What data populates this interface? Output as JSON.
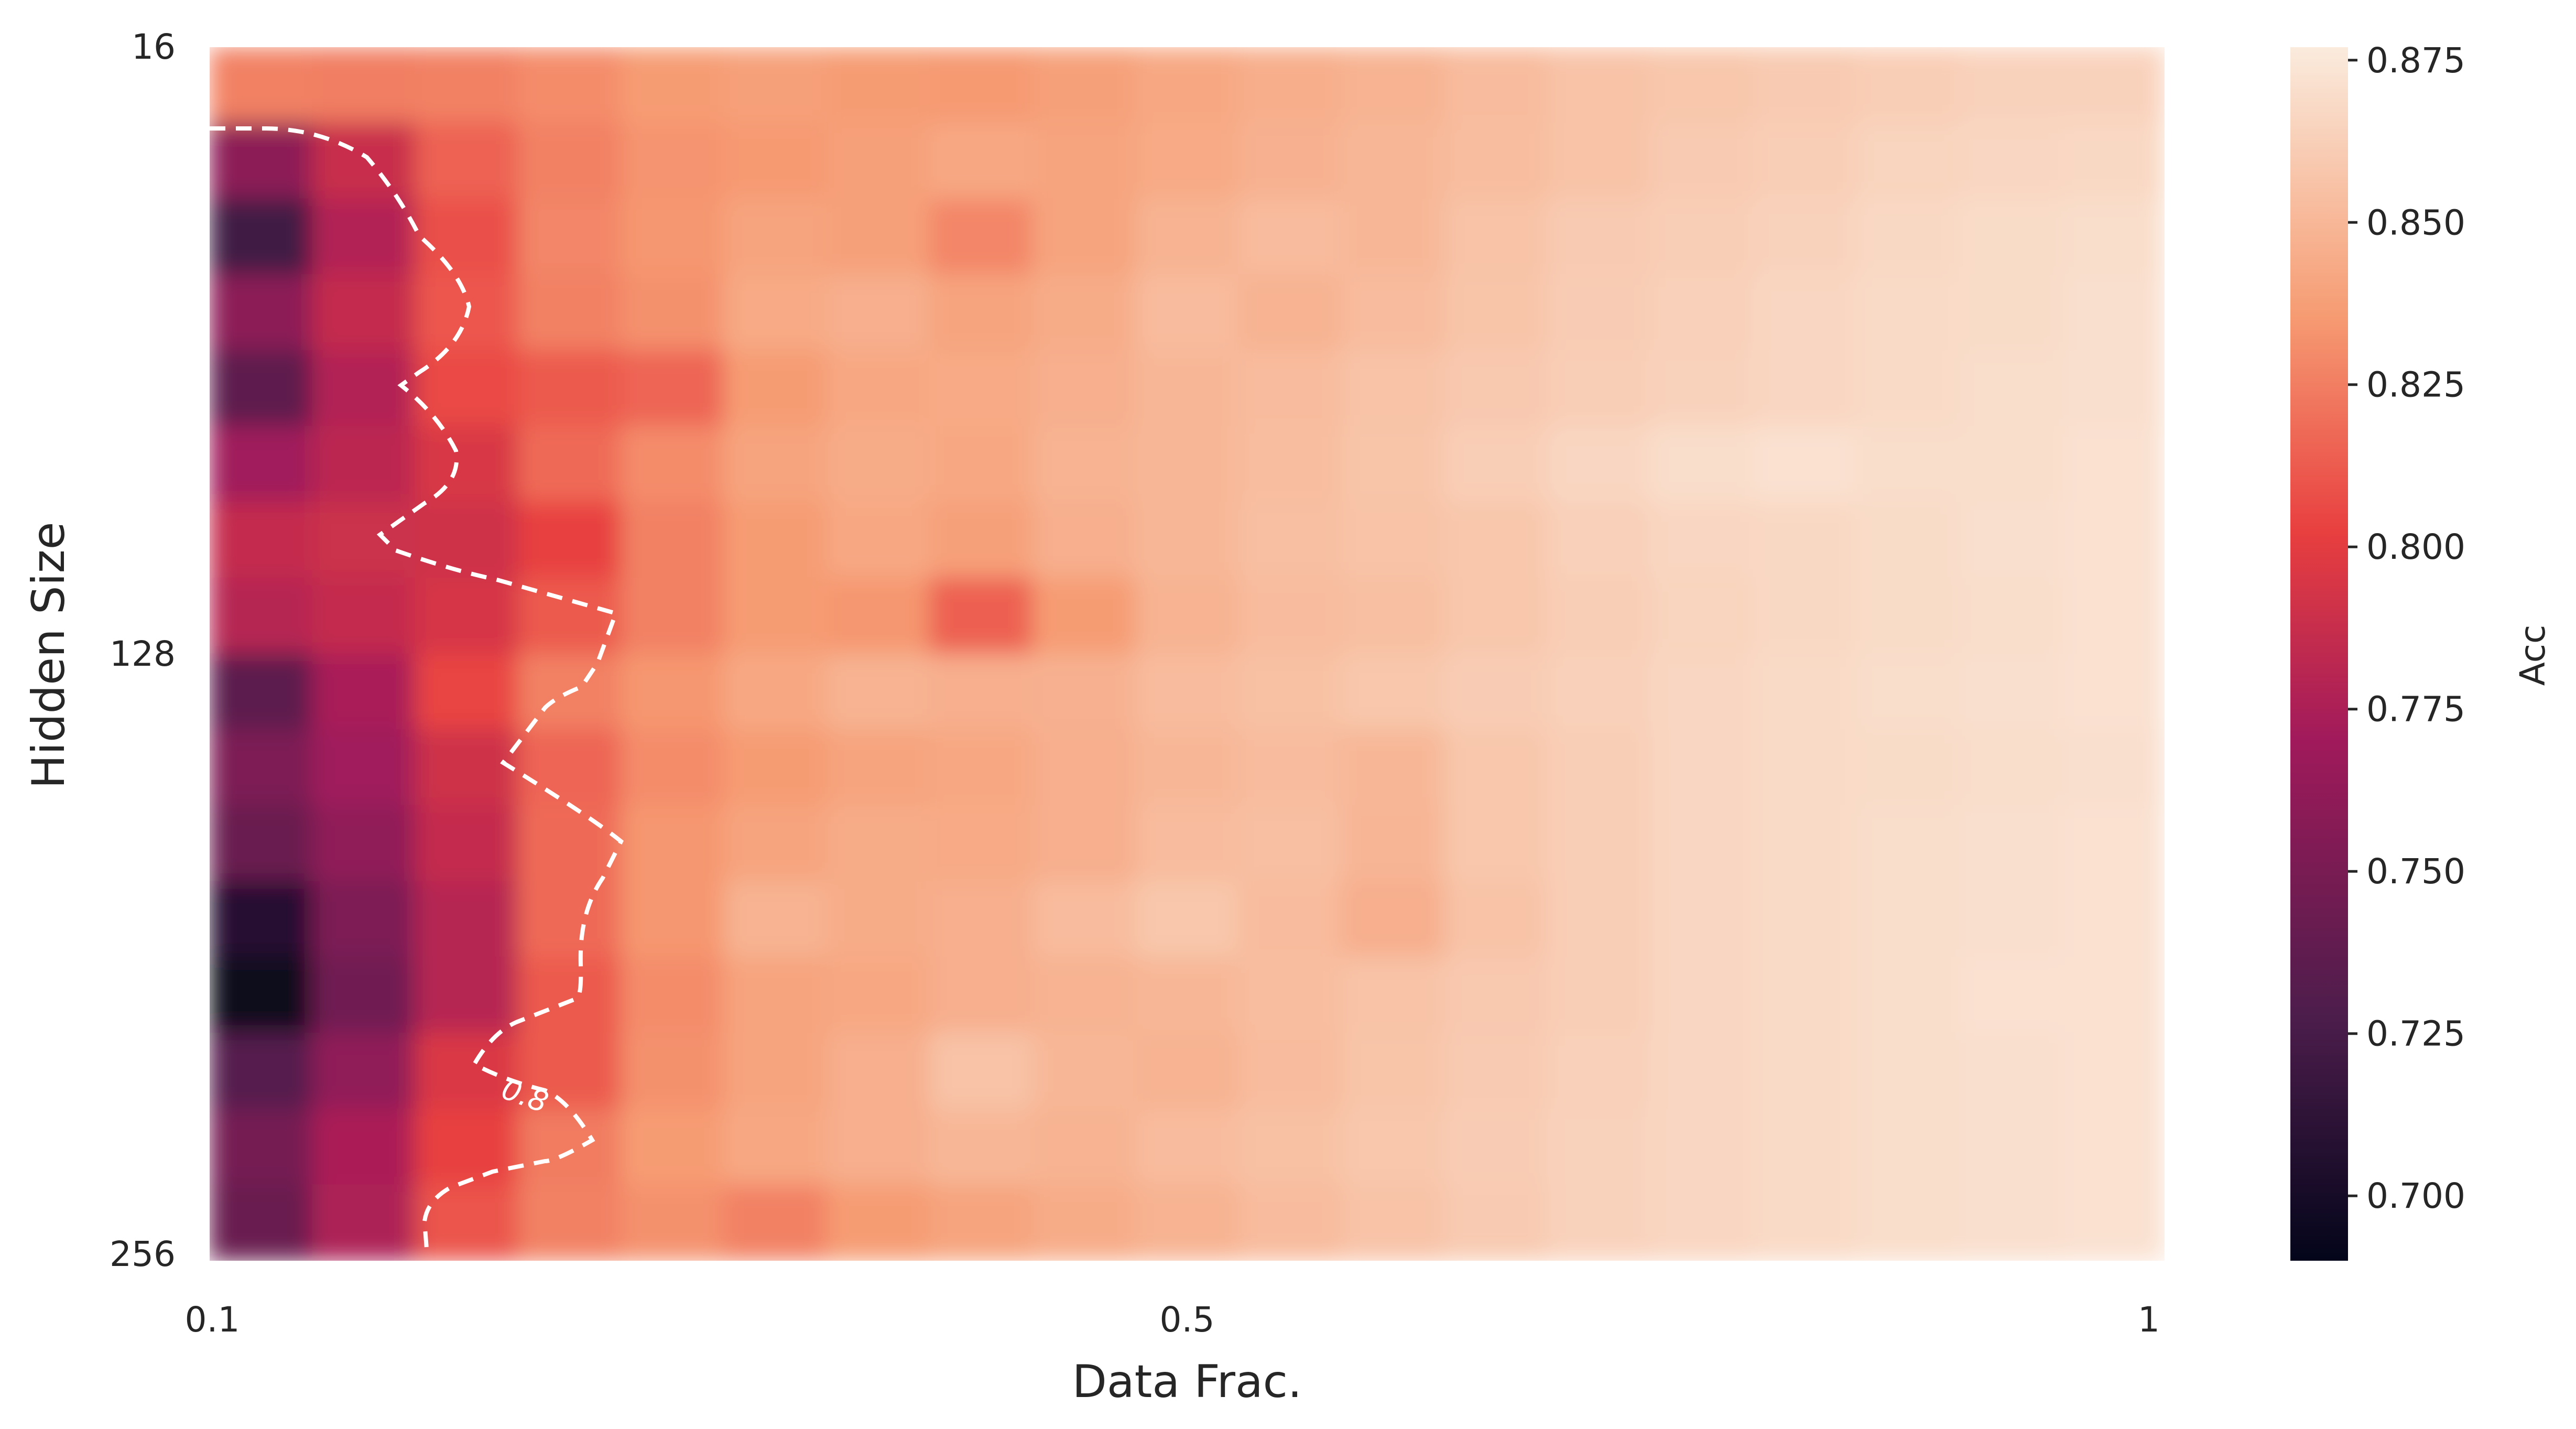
{
  "chart_data": {
    "type": "heatmap",
    "xlabel": "Data Frac.",
    "ylabel": "Hidden Size",
    "x_ticks": [
      "0.1",
      "0.5",
      "1"
    ],
    "y_ticks": [
      "16",
      "128",
      "256"
    ],
    "x_range": [
      0.1,
      1.0
    ],
    "y_range": [
      16,
      256
    ],
    "colorbar": {
      "label": "Acc",
      "range": [
        0.69,
        0.877
      ],
      "ticks": [
        "0.700",
        "0.725",
        "0.750",
        "0.775",
        "0.800",
        "0.825",
        "0.850",
        "0.875"
      ],
      "colormap": "rocket",
      "stops": [
        "#03051a",
        "#4c1d4b",
        "#a11a5b",
        "#e83f3f",
        "#f69c73",
        "#faebdd"
      ]
    },
    "contour": {
      "level": 0.8,
      "label": "0.8",
      "style": "dashed",
      "color": "#ffffff"
    },
    "rows_hidden_size": [
      16,
      32,
      48,
      64,
      80,
      96,
      112,
      128,
      144,
      160,
      176,
      192,
      208,
      224,
      240,
      256
    ],
    "cols_data_frac": [
      0.1,
      0.15,
      0.2,
      0.25,
      0.3,
      0.35,
      0.4,
      0.45,
      0.5,
      0.55,
      0.6,
      0.65,
      0.7,
      0.75,
      0.8,
      0.85,
      0.9,
      0.95,
      1.0
    ],
    "values": [
      [
        0.826,
        0.825,
        0.826,
        0.83,
        0.836,
        0.838,
        0.836,
        0.835,
        0.838,
        0.842,
        0.845,
        0.848,
        0.852,
        0.856,
        0.858,
        0.86,
        0.862,
        0.864,
        0.864
      ],
      [
        0.76,
        0.788,
        0.815,
        0.826,
        0.833,
        0.835,
        0.838,
        0.842,
        0.84,
        0.843,
        0.847,
        0.85,
        0.853,
        0.856,
        0.86,
        0.862,
        0.865,
        0.866,
        0.867
      ],
      [
        0.722,
        0.778,
        0.808,
        0.828,
        0.834,
        0.84,
        0.838,
        0.828,
        0.84,
        0.848,
        0.852,
        0.85,
        0.856,
        0.86,
        0.862,
        0.864,
        0.867,
        0.869,
        0.87
      ],
      [
        0.76,
        0.786,
        0.811,
        0.826,
        0.832,
        0.843,
        0.846,
        0.84,
        0.844,
        0.852,
        0.848,
        0.852,
        0.857,
        0.861,
        0.863,
        0.866,
        0.868,
        0.869,
        0.871
      ],
      [
        0.736,
        0.778,
        0.806,
        0.812,
        0.816,
        0.836,
        0.842,
        0.843,
        0.846,
        0.85,
        0.852,
        0.856,
        0.859,
        0.862,
        0.864,
        0.866,
        0.868,
        0.87,
        0.871
      ],
      [
        0.77,
        0.782,
        0.795,
        0.818,
        0.83,
        0.84,
        0.844,
        0.842,
        0.848,
        0.85,
        0.853,
        0.857,
        0.862,
        0.866,
        0.87,
        0.872,
        0.87,
        0.87,
        0.872
      ],
      [
        0.786,
        0.789,
        0.79,
        0.802,
        0.826,
        0.836,
        0.842,
        0.838,
        0.846,
        0.85,
        0.854,
        0.856,
        0.858,
        0.863,
        0.866,
        0.867,
        0.869,
        0.871,
        0.872
      ],
      [
        0.78,
        0.786,
        0.794,
        0.812,
        0.826,
        0.836,
        0.834,
        0.814,
        0.836,
        0.848,
        0.852,
        0.854,
        0.858,
        0.862,
        0.865,
        0.867,
        0.869,
        0.87,
        0.872
      ],
      [
        0.735,
        0.774,
        0.804,
        0.826,
        0.834,
        0.842,
        0.848,
        0.846,
        0.847,
        0.852,
        0.855,
        0.858,
        0.861,
        0.863,
        0.866,
        0.868,
        0.87,
        0.871,
        0.872
      ],
      [
        0.752,
        0.77,
        0.79,
        0.816,
        0.83,
        0.836,
        0.84,
        0.842,
        0.846,
        0.85,
        0.852,
        0.85,
        0.858,
        0.862,
        0.866,
        0.868,
        0.869,
        0.87,
        0.871
      ],
      [
        0.742,
        0.762,
        0.786,
        0.818,
        0.834,
        0.84,
        0.844,
        0.843,
        0.846,
        0.852,
        0.854,
        0.849,
        0.858,
        0.862,
        0.866,
        0.868,
        0.87,
        0.871,
        0.872
      ],
      [
        0.708,
        0.752,
        0.78,
        0.818,
        0.834,
        0.848,
        0.844,
        0.846,
        0.852,
        0.858,
        0.852,
        0.846,
        0.856,
        0.862,
        0.866,
        0.868,
        0.87,
        0.871,
        0.872
      ],
      [
        0.694,
        0.745,
        0.78,
        0.812,
        0.83,
        0.84,
        0.842,
        0.846,
        0.848,
        0.85,
        0.853,
        0.856,
        0.859,
        0.862,
        0.866,
        0.868,
        0.87,
        0.872,
        0.872
      ],
      [
        0.732,
        0.762,
        0.796,
        0.812,
        0.832,
        0.84,
        0.846,
        0.856,
        0.85,
        0.848,
        0.852,
        0.857,
        0.86,
        0.863,
        0.866,
        0.868,
        0.87,
        0.871,
        0.872
      ],
      [
        0.748,
        0.775,
        0.803,
        0.824,
        0.836,
        0.842,
        0.846,
        0.85,
        0.848,
        0.852,
        0.855,
        0.858,
        0.861,
        0.864,
        0.866,
        0.868,
        0.87,
        0.871,
        0.872
      ],
      [
        0.742,
        0.776,
        0.81,
        0.826,
        0.832,
        0.826,
        0.836,
        0.84,
        0.844,
        0.848,
        0.852,
        0.856,
        0.86,
        0.864,
        0.866,
        0.868,
        0.87,
        0.871,
        0.872
      ]
    ]
  }
}
